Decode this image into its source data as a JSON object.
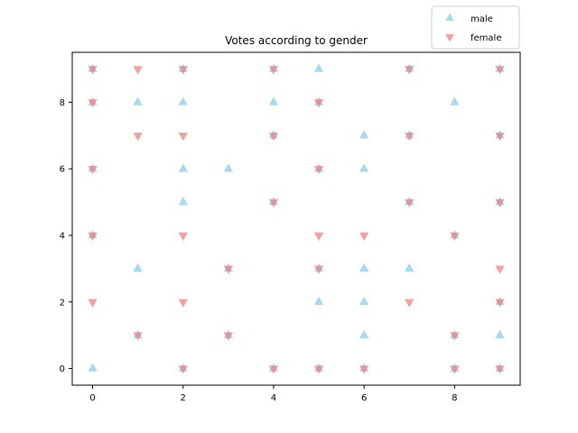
{
  "chart_data": {
    "type": "scatter",
    "title": "Votes according to gender",
    "xlabel": "",
    "ylabel": "",
    "xlim": [
      -0.45,
      9.45
    ],
    "ylim": [
      -0.5,
      9.5
    ],
    "xticks": [
      0,
      2,
      4,
      6,
      8
    ],
    "yticks": [
      0,
      2,
      4,
      6,
      8
    ],
    "grid": false,
    "legend_position": "top-right",
    "series": [
      {
        "name": "male",
        "marker": "triangle-up",
        "color": "#87ceeb",
        "points": [
          [
            0,
            9
          ],
          [
            0,
            8
          ],
          [
            0,
            6
          ],
          [
            0,
            4
          ],
          [
            0,
            0
          ],
          [
            1,
            8
          ],
          [
            1,
            3
          ],
          [
            1,
            1
          ],
          [
            2,
            9
          ],
          [
            2,
            8
          ],
          [
            2,
            6
          ],
          [
            2,
            5
          ],
          [
            2,
            0
          ],
          [
            3,
            6
          ],
          [
            3,
            3
          ],
          [
            3,
            1
          ],
          [
            4,
            9
          ],
          [
            4,
            8
          ],
          [
            4,
            7
          ],
          [
            4,
            5
          ],
          [
            4,
            0
          ],
          [
            5,
            9
          ],
          [
            5,
            8
          ],
          [
            5,
            6
          ],
          [
            5,
            3
          ],
          [
            5,
            2
          ],
          [
            5,
            0
          ],
          [
            6,
            7
          ],
          [
            6,
            6
          ],
          [
            6,
            3
          ],
          [
            6,
            2
          ],
          [
            6,
            1
          ],
          [
            6,
            0
          ],
          [
            7,
            9
          ],
          [
            7,
            7
          ],
          [
            7,
            5
          ],
          [
            7,
            3
          ],
          [
            8,
            8
          ],
          [
            8,
            4
          ],
          [
            8,
            1
          ],
          [
            8,
            0
          ],
          [
            9,
            9
          ],
          [
            9,
            7
          ],
          [
            9,
            5
          ],
          [
            9,
            2
          ],
          [
            9,
            1
          ],
          [
            9,
            0
          ]
        ]
      },
      {
        "name": "female",
        "marker": "triangle-down",
        "color": "#f08080",
        "points": [
          [
            0,
            9
          ],
          [
            0,
            8
          ],
          [
            0,
            6
          ],
          [
            0,
            4
          ],
          [
            0,
            2
          ],
          [
            1,
            9
          ],
          [
            1,
            7
          ],
          [
            1,
            1
          ],
          [
            2,
            9
          ],
          [
            2,
            7
          ],
          [
            2,
            4
          ],
          [
            2,
            2
          ],
          [
            2,
            0
          ],
          [
            3,
            3
          ],
          [
            3,
            1
          ],
          [
            4,
            9
          ],
          [
            4,
            7
          ],
          [
            4,
            5
          ],
          [
            4,
            0
          ],
          [
            5,
            8
          ],
          [
            5,
            6
          ],
          [
            5,
            4
          ],
          [
            5,
            3
          ],
          [
            5,
            0
          ],
          [
            6,
            4
          ],
          [
            6,
            0
          ],
          [
            7,
            9
          ],
          [
            7,
            7
          ],
          [
            7,
            5
          ],
          [
            7,
            2
          ],
          [
            8,
            4
          ],
          [
            8,
            1
          ],
          [
            8,
            0
          ],
          [
            9,
            9
          ],
          [
            9,
            7
          ],
          [
            9,
            5
          ],
          [
            9,
            3
          ],
          [
            9,
            2
          ],
          [
            9,
            0
          ]
        ]
      }
    ]
  }
}
